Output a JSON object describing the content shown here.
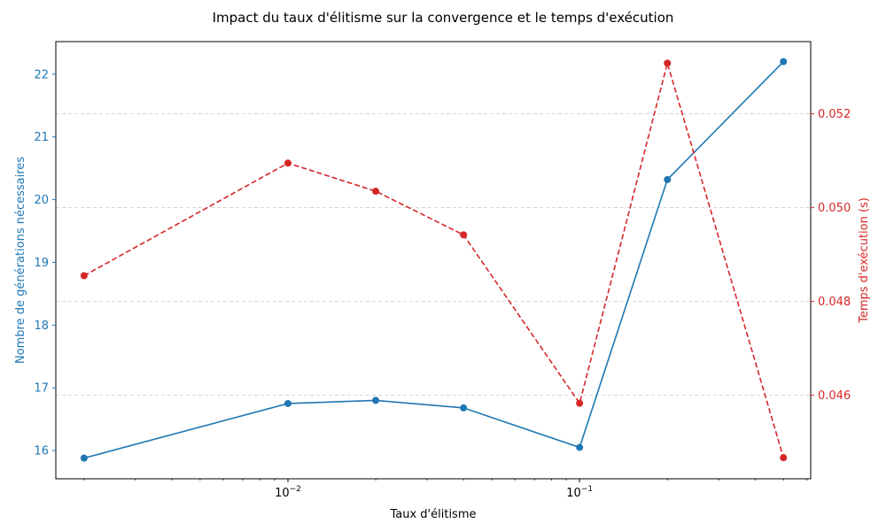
{
  "chart_data": {
    "type": "line",
    "title": "Impact du taux d'élitisme sur la convergence et le temps d'exécution",
    "xlabel": "Taux d'élitisme",
    "x_scale": "log",
    "x": [
      0.002,
      0.01,
      0.02,
      0.04,
      0.1,
      0.2,
      0.5
    ],
    "xlim": [
      0.0016,
      0.62
    ],
    "x_tick_labels": [
      {
        "value": 0.01,
        "base": "10",
        "exp": "−2"
      },
      {
        "value": 0.1,
        "base": "10",
        "exp": "−1"
      }
    ],
    "y_left": {
      "label": "Nombre de générations nécessaires",
      "color": "#1f77b4",
      "ylim": [
        15.55,
        22.52
      ],
      "ticks": [
        16,
        17,
        18,
        19,
        20,
        21,
        22
      ],
      "tick_labels": [
        "16",
        "17",
        "18",
        "19",
        "20",
        "21",
        "22"
      ]
    },
    "y_right": {
      "label": "Temps d'exécution (s)",
      "color": "#d62728",
      "ylim": [
        0.04422,
        0.05354
      ],
      "ticks": [
        0.046,
        0.048,
        0.05,
        0.052
      ],
      "tick_labels": [
        "0.046",
        "0.048",
        "0.050",
        "0.052"
      ]
    },
    "series": [
      {
        "axis": "left",
        "color": "#1f77b4",
        "line_style": "solid",
        "marker": "circle",
        "values": [
          15.88,
          16.75,
          16.8,
          16.68,
          16.05,
          20.32,
          22.2
        ]
      },
      {
        "axis": "right",
        "color": "#d62728",
        "line_style": "dashed",
        "marker": "circle",
        "values": [
          0.04855,
          0.05095,
          0.05035,
          0.04942,
          0.04583,
          0.05308,
          0.04467
        ]
      }
    ],
    "grid": "horizontal dashed (right axis ticks)"
  }
}
